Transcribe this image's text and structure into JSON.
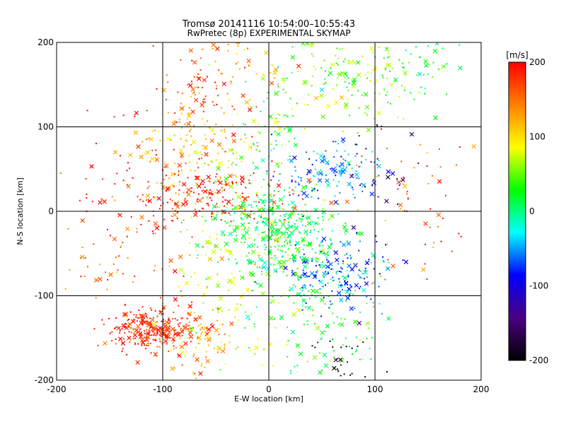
{
  "chart_data": {
    "type": "scatter",
    "title": "Tromsø 20141116  10:54:00–10:55:43",
    "subtitle": "RwPretec (8p) EXPERIMENTAL SKYMAP",
    "xlabel": "E-W location [km]",
    "ylabel": "N-S location [km]",
    "xlim": [
      -200,
      200
    ],
    "ylim": [
      -200,
      200
    ],
    "xticks": [
      -200,
      -100,
      0,
      100,
      200
    ],
    "yticks": [
      -200,
      -100,
      0,
      100,
      200
    ],
    "grid": true,
    "colorbar": {
      "label": "[m/s]",
      "range": [
        -200,
        200
      ],
      "ticks": [
        200,
        100,
        0,
        -100,
        -200
      ],
      "colormap": [
        "#000000",
        "#4b0082",
        "#0000ff",
        "#00ffff",
        "#00ff00",
        "#ffff00",
        "#ff8000",
        "#ff0000"
      ]
    },
    "markers": {
      "small": "dot",
      "large": "x"
    },
    "clusters": [
      {
        "x": -110,
        "y": -140,
        "sx": 22,
        "sy": 12,
        "v": 185,
        "n": 280
      },
      {
        "x": -65,
        "y": -155,
        "sx": 22,
        "sy": 25,
        "v": 120,
        "n": 90
      },
      {
        "x": -60,
        "y": 150,
        "sx": 20,
        "sy": 25,
        "v": 165,
        "n": 70
      },
      {
        "x": -65,
        "y": 80,
        "sx": 30,
        "sy": 25,
        "v": 120,
        "n": 140
      },
      {
        "x": -60,
        "y": 20,
        "sx": 40,
        "sy": 15,
        "v": 190,
        "n": 170
      },
      {
        "x": -120,
        "y": 20,
        "sx": 45,
        "sy": 50,
        "v": 185,
        "n": 90
      },
      {
        "x": -20,
        "y": 170,
        "sx": 20,
        "sy": 25,
        "v": 120,
        "n": 45
      },
      {
        "x": 10,
        "y": -20,
        "sx": 30,
        "sy": 25,
        "v": 20,
        "n": 350
      },
      {
        "x": -40,
        "y": -40,
        "sx": 25,
        "sy": 35,
        "v": 80,
        "n": 100
      },
      {
        "x": 0,
        "y": 80,
        "sx": 20,
        "sy": 30,
        "v": 30,
        "n": 70
      },
      {
        "x": 55,
        "y": 45,
        "sx": 25,
        "sy": 20,
        "v": -60,
        "n": 130
      },
      {
        "x": 65,
        "y": -70,
        "sx": 25,
        "sy": 20,
        "v": -70,
        "n": 160
      },
      {
        "x": 80,
        "y": 155,
        "sx": 35,
        "sy": 25,
        "v": 55,
        "n": 170
      },
      {
        "x": 140,
        "y": 175,
        "sx": 20,
        "sy": 20,
        "v": 20,
        "n": 40
      },
      {
        "x": 60,
        "y": -150,
        "sx": 30,
        "sy": 30,
        "v": 20,
        "n": 70
      },
      {
        "x": 70,
        "y": -170,
        "sx": 15,
        "sy": 15,
        "v": -180,
        "n": 25
      },
      {
        "x": 140,
        "y": -20,
        "sx": 25,
        "sy": 30,
        "v": 175,
        "n": 30
      },
      {
        "x": 130,
        "y": 50,
        "sx": 30,
        "sy": 30,
        "v": 150,
        "n": 25
      },
      {
        "x": -150,
        "y": -60,
        "sx": 30,
        "sy": 30,
        "v": 160,
        "n": 40
      },
      {
        "x": -20,
        "y": -130,
        "sx": 30,
        "sy": 40,
        "v": 70,
        "n": 60
      },
      {
        "x": 100,
        "y": 70,
        "sx": 20,
        "sy": 30,
        "v": -170,
        "n": 15
      },
      {
        "x": 120,
        "y": 30,
        "sx": 20,
        "sy": 30,
        "v": -150,
        "n": 10
      },
      {
        "x": 25,
        "y": -80,
        "sx": 30,
        "sy": 25,
        "v": 15,
        "n": 110
      }
    ]
  }
}
